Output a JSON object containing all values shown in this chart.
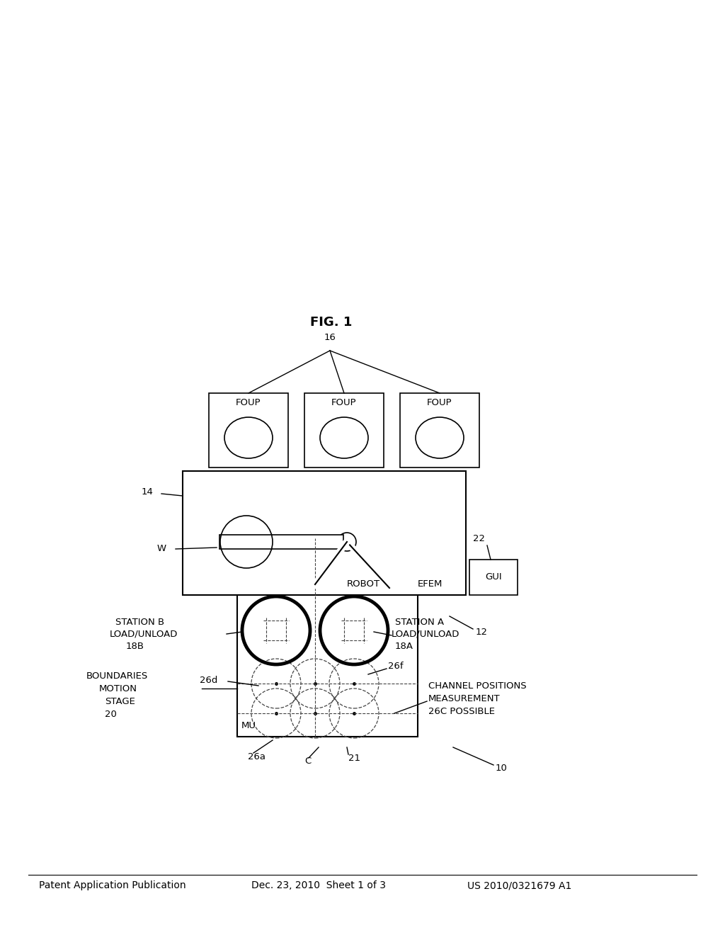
{
  "bg_color": "#ffffff",
  "header_left": "Patent Application Publication",
  "header_center": "Dec. 23, 2010  Sheet 1 of 3",
  "header_right": "US 2010/0321679 A1",
  "fig_label": "FIG. 1",
  "line_color": "#000000",
  "dashed_color": "#444444",
  "header_font_size": 10,
  "label_font_size": 9.5
}
